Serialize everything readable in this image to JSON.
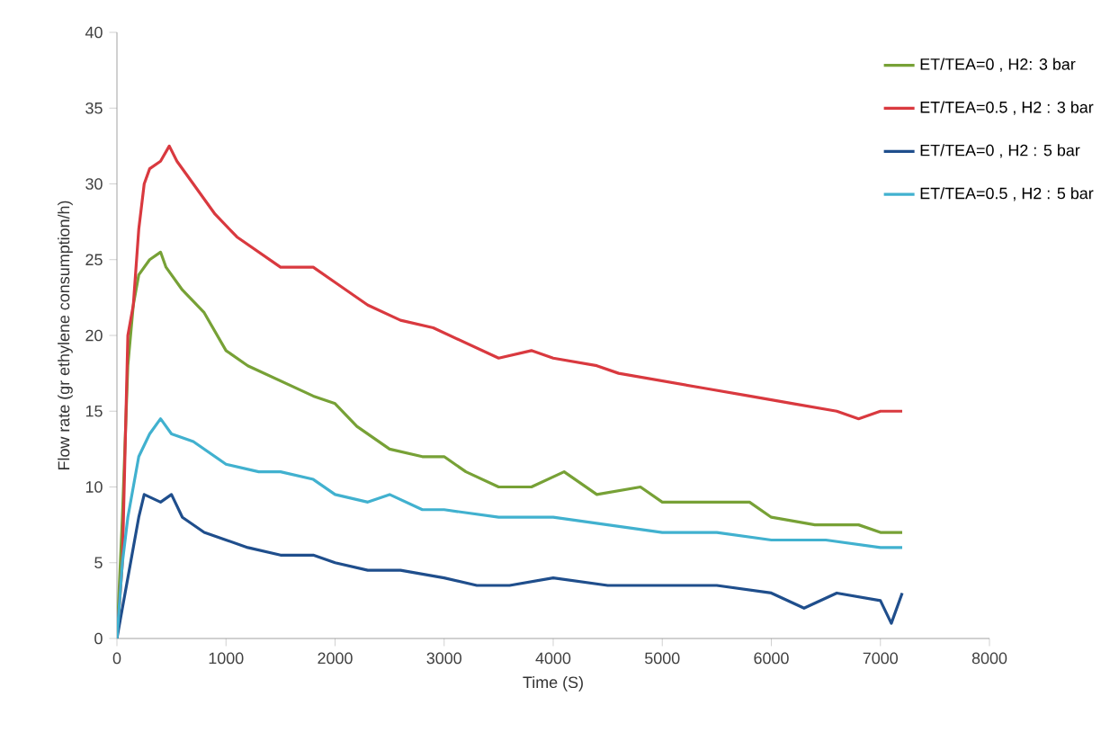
{
  "chart_data": {
    "type": "line",
    "xlabel": "Time (S)",
    "ylabel": "Flow rate (gr ethylene consumption/h)",
    "xlim": [
      0,
      8000
    ],
    "ylim": [
      0,
      40
    ],
    "xticks": [
      0,
      1000,
      2000,
      3000,
      4000,
      5000,
      6000,
      7000,
      8000
    ],
    "yticks": [
      0,
      5,
      10,
      15,
      20,
      25,
      30,
      35,
      40
    ],
    "grid": false,
    "legend": "top right",
    "marker": "none",
    "line_style": "solid",
    "series": [
      {
        "name": "ET/TEA=0 , H2: 3 bar",
        "color": "#77a136",
        "x": [
          0,
          50,
          100,
          150,
          200,
          300,
          400,
          450,
          600,
          800,
          1000,
          1200,
          1500,
          1800,
          2000,
          2200,
          2500,
          2800,
          3000,
          3200,
          3500,
          3800,
          4100,
          4400,
          4800,
          5000,
          5400,
          5800,
          6000,
          6400,
          6800,
          7000,
          7200
        ],
        "values": [
          0,
          8,
          18,
          22,
          24,
          25,
          25.5,
          24.5,
          23,
          21.5,
          19,
          18,
          17,
          16,
          15.5,
          14,
          12.5,
          12,
          12,
          11,
          10,
          10,
          11,
          9.5,
          10,
          9,
          9,
          9,
          8,
          7.5,
          7.5,
          7,
          7
        ]
      },
      {
        "name": "ET/TEA=0.5 , H2 : 3 bar",
        "color": "#d9393f",
        "x": [
          0,
          50,
          100,
          150,
          200,
          250,
          300,
          400,
          480,
          550,
          700,
          900,
          1100,
          1300,
          1500,
          1800,
          2000,
          2300,
          2600,
          2900,
          3200,
          3500,
          3800,
          4000,
          4400,
          4600,
          5000,
          5400,
          5800,
          6200,
          6600,
          6800,
          7000,
          7200
        ],
        "values": [
          0,
          5,
          20,
          22,
          27,
          30,
          31,
          31.5,
          32.5,
          31.5,
          30,
          28,
          26.5,
          25.5,
          24.5,
          24.5,
          23.5,
          22,
          21,
          20.5,
          19.5,
          18.5,
          19,
          18.5,
          18,
          17.5,
          17,
          16.5,
          16,
          15.5,
          15,
          14.5,
          15,
          15
        ]
      },
      {
        "name": "ET/TEA=0 , H2 : 5 bar",
        "color": "#1f4e8c",
        "x": [
          0,
          50,
          100,
          200,
          250,
          400,
          500,
          600,
          800,
          1000,
          1200,
          1500,
          1800,
          2000,
          2300,
          2600,
          3000,
          3300,
          3600,
          4000,
          4500,
          5000,
          5500,
          6000,
          6300,
          6600,
          7000,
          7100,
          7200
        ],
        "values": [
          0,
          2,
          4,
          8,
          9.5,
          9,
          9.5,
          8,
          7,
          6.5,
          6,
          5.5,
          5.5,
          5,
          4.5,
          4.5,
          4,
          3.5,
          3.5,
          4,
          3.5,
          3.5,
          3.5,
          3,
          2,
          3,
          2.5,
          1,
          3
        ]
      },
      {
        "name": "ET/TEA=0.5 , H2 : 5 bar",
        "color": "#41b1cf",
        "x": [
          0,
          50,
          100,
          200,
          300,
          400,
          500,
          700,
          1000,
          1300,
          1500,
          1800,
          2000,
          2300,
          2500,
          2800,
          3000,
          3500,
          4000,
          4500,
          5000,
          5500,
          6000,
          6500,
          7000,
          7200
        ],
        "values": [
          0,
          5,
          8,
          12,
          13.5,
          14.5,
          13.5,
          13,
          11.5,
          11,
          11,
          10.5,
          9.5,
          9,
          9.5,
          8.5,
          8.5,
          8,
          8,
          7.5,
          7,
          7,
          6.5,
          6.5,
          6,
          6
        ]
      }
    ]
  }
}
